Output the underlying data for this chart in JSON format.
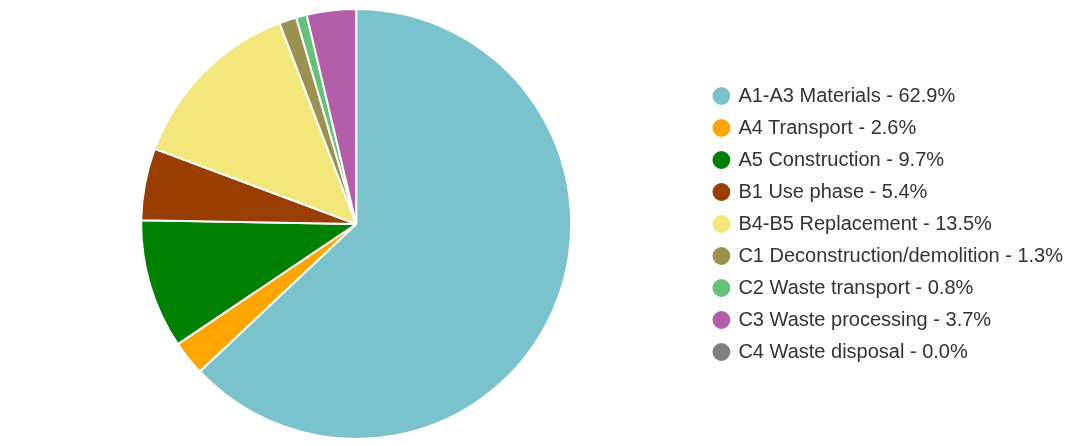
{
  "chart_data": {
    "type": "pie",
    "categories": [
      "A1-A3 Materials - 62.9%",
      "A4 Transport - 2.6%",
      "A5 Construction - 9.7%",
      "B1 Use phase - 5.4%",
      "B4-B5 Replacement - 13.5%",
      "C1 Deconstruction/demolition - 1.3%",
      "C2 Waste transport - 0.8%",
      "C3 Waste processing - 3.7%",
      "C4 Waste disposal - 0.0%"
    ],
    "values": [
      62.9,
      2.6,
      9.7,
      5.4,
      13.5,
      1.3,
      0.8,
      3.7,
      0.0
    ],
    "colors": [
      "#7bc3cc",
      "#ffa500",
      "#008000",
      "#993d00",
      "#f3e67a",
      "#9b9150",
      "#62c27a",
      "#b25ea8",
      "#7f7f7f"
    ],
    "legend": "right"
  }
}
